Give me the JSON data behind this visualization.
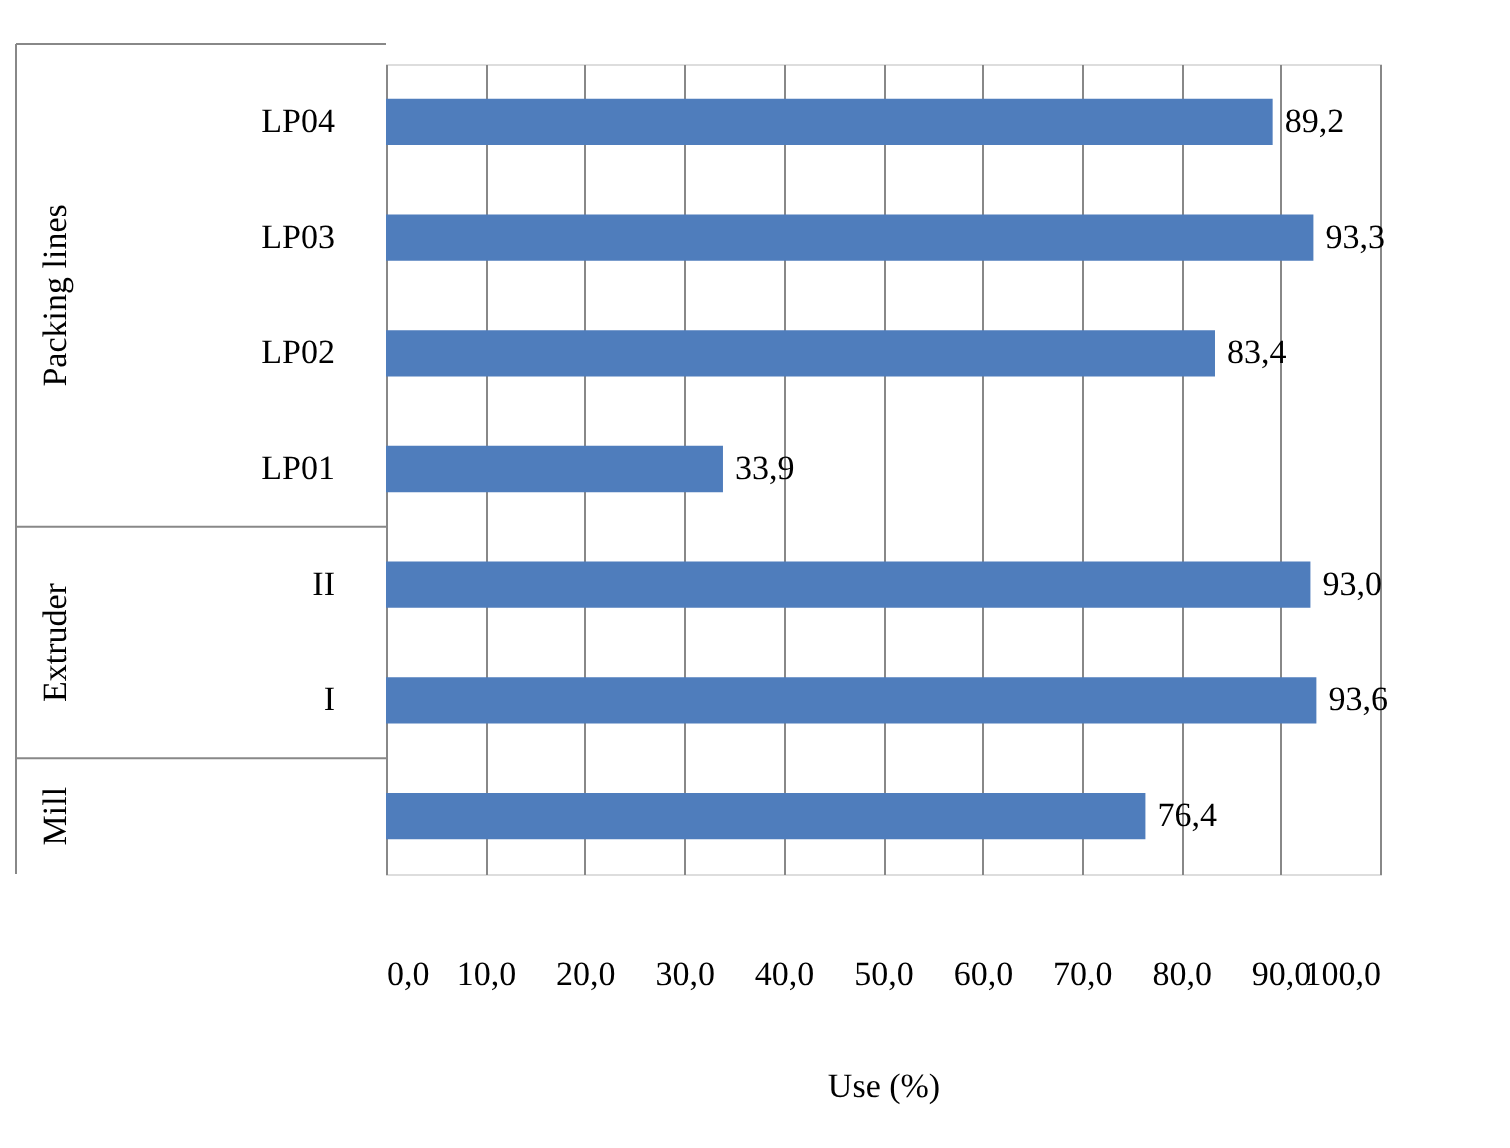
{
  "chart_data": {
    "type": "bar",
    "orientation": "horizontal",
    "xlabel": "Use (%)",
    "categories": [
      "LP04",
      "LP03",
      "LP02",
      "LP01",
      "II",
      "I",
      null
    ],
    "values": [
      89.2,
      93.3,
      83.4,
      33.9,
      93.0,
      93.6,
      76.4
    ],
    "value_labels": [
      "89,2",
      "93,3",
      "83,4",
      "33,9",
      "93,0",
      "93,6",
      "76,4"
    ],
    "color": "#4f7dbc",
    "xlim": [
      0,
      100
    ],
    "xticks": [
      {
        "value": 0,
        "label": "0,0"
      },
      {
        "value": 10,
        "label": "10,0"
      },
      {
        "value": 20,
        "label": "20,0"
      },
      {
        "value": 30,
        "label": "30,0"
      },
      {
        "value": 40,
        "label": "40,0"
      },
      {
        "value": 50,
        "label": "50,0"
      },
      {
        "value": 60,
        "label": "60,0"
      },
      {
        "value": 70,
        "label": "70,0"
      },
      {
        "value": 80,
        "label": "80,0"
      },
      {
        "value": 90,
        "label": "90,0"
      },
      {
        "value": 100,
        "label": "100,0"
      }
    ],
    "grid": "x",
    "annotations": [
      "Packing lines",
      "Extruder",
      "Mill"
    ]
  }
}
